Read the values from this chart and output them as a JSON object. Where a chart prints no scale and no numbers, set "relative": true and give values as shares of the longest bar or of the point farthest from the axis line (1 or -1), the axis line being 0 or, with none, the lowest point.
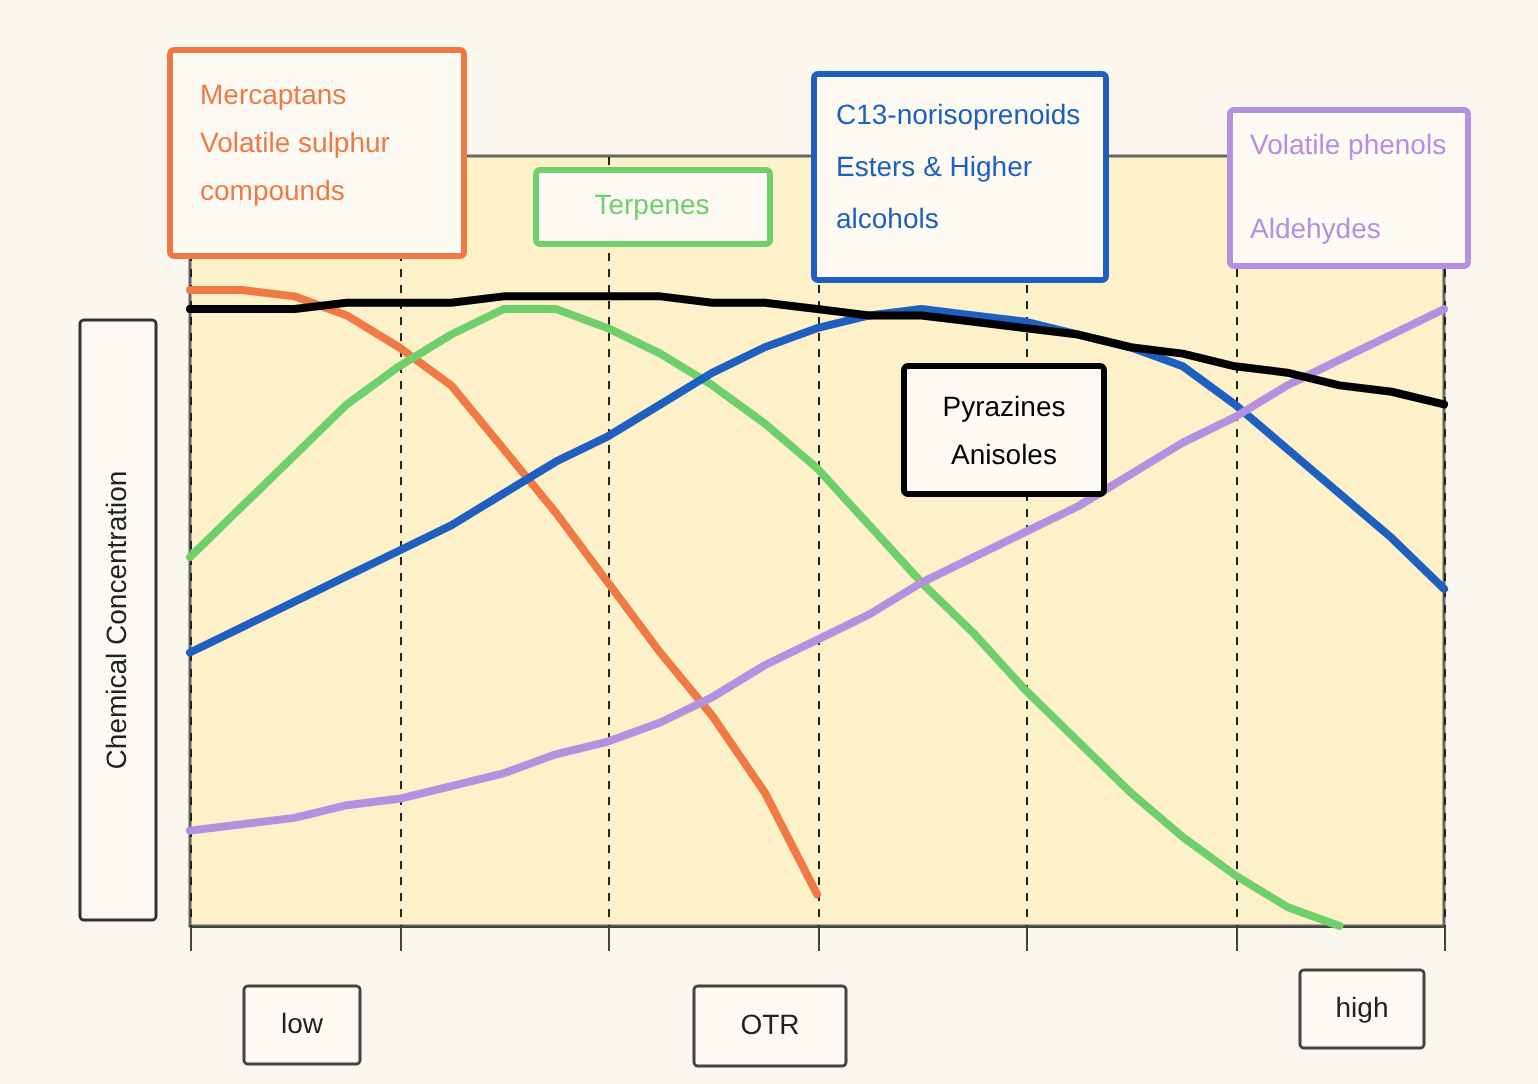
{
  "chart_data": {
    "type": "line",
    "relative": true,
    "xlabel": "OTR",
    "ylabel": "Chemical Concentration",
    "annotations": [
      "low",
      "high"
    ],
    "grid": "x",
    "categories": [
      null,
      null,
      null,
      null,
      null,
      null,
      null,
      null,
      null,
      null,
      null,
      null,
      null,
      null,
      null,
      null,
      null,
      null,
      null,
      null,
      null,
      null,
      null,
      null,
      null
    ],
    "series": [
      {
        "name": "Mercaptans\nVolatile sulphur\ncompounds",
        "color": "#f07a45",
        "values": [
          1.0,
          1.0,
          0.99,
          0.96,
          0.91,
          0.85,
          0.75,
          0.65,
          0.54,
          0.43,
          0.33,
          0.21,
          0.05,
          null,
          null,
          null,
          null,
          null,
          null,
          null,
          null,
          null,
          null,
          null,
          null
        ]
      },
      {
        "name": "Terpenes",
        "color": "#6fcf6a",
        "values": [
          0.58,
          0.66,
          0.74,
          0.82,
          0.88,
          0.93,
          0.97,
          0.97,
          0.94,
          0.9,
          0.85,
          0.79,
          0.72,
          0.63,
          0.54,
          0.46,
          0.37,
          0.29,
          0.21,
          0.14,
          0.08,
          0.03,
          0.0,
          null,
          null
        ]
      },
      {
        "name": "C13-norisoprenoids\nEsters & Higher\nalcohols",
        "color": "#1f5fc0",
        "values": [
          0.43,
          0.47,
          0.51,
          0.55,
          0.59,
          0.63,
          0.68,
          0.73,
          0.77,
          0.82,
          0.87,
          0.91,
          0.94,
          0.96,
          0.97,
          0.96,
          0.95,
          0.93,
          0.91,
          0.88,
          0.82,
          0.75,
          0.68,
          0.61,
          0.53
        ]
      },
      {
        "name": "Volatile phenols\nAldehydes",
        "color": "#b58fe0",
        "values": [
          0.15,
          0.16,
          0.17,
          0.19,
          0.2,
          0.22,
          0.24,
          0.27,
          0.29,
          0.32,
          0.36,
          0.41,
          0.45,
          0.49,
          0.54,
          0.58,
          0.62,
          0.66,
          0.71,
          0.76,
          0.8,
          0.85,
          0.89,
          0.93,
          0.97
        ]
      },
      {
        "name": "Pyrazines\nAnisoles",
        "color": "#000000",
        "values": [
          0.97,
          0.97,
          0.97,
          0.98,
          0.98,
          0.98,
          0.99,
          0.99,
          0.99,
          0.99,
          0.98,
          0.98,
          0.97,
          0.96,
          0.96,
          0.95,
          0.94,
          0.93,
          0.91,
          0.9,
          0.88,
          0.87,
          0.85,
          0.84,
          0.82
        ]
      }
    ]
  }
}
